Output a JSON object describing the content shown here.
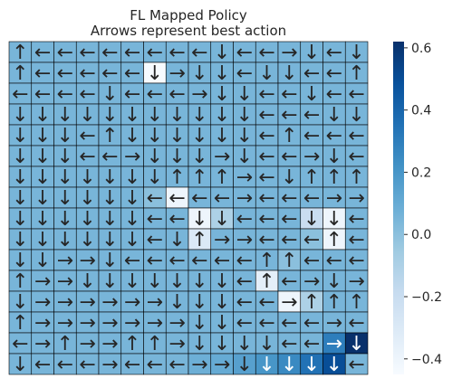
{
  "chart_data": {
    "type": "heatmap",
    "title": "FL Mapped Policy",
    "subtitle": "Arrows represent best action",
    "rows": 16,
    "cols": 16,
    "arrows": [
      [
        "↑",
        "←",
        "←",
        "←",
        "←",
        "←",
        "←",
        "←",
        "←",
        "↓",
        "←",
        "←",
        "→",
        "↓",
        "←",
        "↓"
      ],
      [
        "↑",
        "←",
        "←",
        "←",
        "←",
        "←",
        "↓",
        "→",
        "↓",
        "↓",
        "←",
        "↓",
        "↓",
        "←",
        "←",
        "↑"
      ],
      [
        "←",
        "←",
        "←",
        "←",
        "↓",
        "←",
        "←",
        "←",
        "→",
        "↓",
        "↓",
        "←",
        "←",
        "↓",
        "←",
        "←"
      ],
      [
        "↓",
        "↓",
        "↓",
        "↓",
        "↓",
        "↓",
        "↓",
        "↓",
        "↓",
        "↓",
        "↓",
        "←",
        "←",
        "←",
        "↓",
        "↓"
      ],
      [
        "↓",
        "↓",
        "↓",
        "←",
        "↑",
        "↓",
        "↓",
        "↓",
        "↓",
        "↓",
        "↓",
        "←",
        "↑",
        "←",
        "←",
        "←"
      ],
      [
        "↓",
        "↓",
        "↓",
        "←",
        "←",
        "→",
        "↓",
        "↓",
        "↓",
        "→",
        "↓",
        "←",
        "←",
        "→",
        "↓",
        "←"
      ],
      [
        "↓",
        "↓",
        "↓",
        "↓",
        "↓",
        "↓",
        "↓",
        "↑",
        "↑",
        "↑",
        "→",
        "←",
        "↓",
        "↑",
        "↑",
        "↑"
      ],
      [
        "↓",
        "↓",
        "↓",
        "↓",
        "↓",
        "↓",
        "←",
        "←",
        "←",
        "←",
        "→",
        "←",
        "←",
        "←",
        "→",
        "→"
      ],
      [
        "↓",
        "↓",
        "↓",
        "↓",
        "↓",
        "↓",
        "←",
        "←",
        "↓",
        "↓",
        "←",
        "←",
        "←",
        "↓",
        "↓",
        "←"
      ],
      [
        "↓",
        "↓",
        "↓",
        "↓",
        "↓",
        "↓",
        "←",
        "↓",
        "↑",
        "→",
        "→",
        "←",
        "←",
        "←",
        "↑",
        "←"
      ],
      [
        "↓",
        "↓",
        "→",
        "→",
        "↓",
        "←",
        "←",
        "←",
        "←",
        "←",
        "←",
        "↑",
        "↑",
        "←",
        "←",
        "←"
      ],
      [
        "↑",
        "→",
        "→",
        "↓",
        "↓",
        "↓",
        "↓",
        "↓",
        "↓",
        "↓",
        "←",
        "↑",
        "←",
        "→",
        "↓",
        "→"
      ],
      [
        "↓",
        "→",
        "→",
        "→",
        "→",
        "→",
        "→",
        "↓",
        "↓",
        "↓",
        "←",
        "←",
        "→",
        "↑",
        "↑",
        "↑"
      ],
      [
        "↑",
        "→",
        "→",
        "→",
        "→",
        "→",
        "→",
        "→",
        "↓",
        "↓",
        "←",
        "←",
        "←",
        "←",
        "→",
        "←"
      ],
      [
        "←",
        "→",
        "↑",
        "→",
        "→",
        "↑",
        "↑",
        "→",
        "↓",
        "↓",
        "↓",
        "↓",
        "←",
        "←",
        "→",
        "↓"
      ],
      [
        "↓",
        "←",
        "←",
        "←",
        "→",
        "←",
        "←",
        "←",
        "→",
        "→",
        "↓",
        "↓",
        "↓",
        "↓",
        "↓",
        "←"
      ]
    ],
    "values": [
      [
        0.05,
        0.05,
        0.05,
        0.05,
        0.05,
        0.05,
        0.05,
        0.05,
        0.05,
        0.05,
        0.05,
        0.05,
        0.05,
        0.05,
        0.05,
        0.05
      ],
      [
        0.05,
        0.05,
        0.05,
        0.05,
        0.05,
        0.05,
        -0.45,
        0.05,
        0.05,
        0.05,
        0.05,
        0.05,
        0.05,
        0.05,
        0.05,
        0.05
      ],
      [
        0.05,
        0.05,
        0.05,
        0.05,
        0.05,
        0.05,
        0.05,
        0.05,
        0.05,
        0.05,
        0.05,
        0.05,
        0.05,
        0.05,
        0.05,
        0.05
      ],
      [
        0.05,
        0.05,
        0.05,
        0.05,
        0.05,
        0.05,
        0.05,
        0.05,
        0.05,
        0.05,
        0.05,
        0.05,
        0.05,
        0.05,
        0.05,
        0.05
      ],
      [
        0.05,
        0.05,
        0.05,
        0.05,
        0.05,
        0.05,
        0.05,
        0.05,
        0.05,
        0.05,
        0.05,
        0.05,
        0.05,
        0.05,
        0.05,
        0.05
      ],
      [
        0.05,
        0.05,
        0.05,
        0.05,
        0.05,
        0.05,
        0.05,
        0.05,
        0.05,
        0.05,
        0.05,
        0.05,
        0.05,
        0.05,
        0.05,
        0.05
      ],
      [
        0.05,
        0.05,
        0.05,
        0.05,
        0.05,
        0.05,
        0.05,
        0.05,
        0.05,
        0.05,
        0.05,
        0.05,
        0.05,
        0.05,
        0.05,
        0.05
      ],
      [
        0.05,
        0.05,
        0.05,
        0.05,
        0.05,
        0.05,
        0.0,
        -0.4,
        0.05,
        0.05,
        0.05,
        0.05,
        0.05,
        0.05,
        0.05,
        0.05
      ],
      [
        0.05,
        0.05,
        0.05,
        0.05,
        0.05,
        0.05,
        0.05,
        0.05,
        -0.4,
        -0.1,
        0.05,
        0.05,
        0.05,
        -0.2,
        -0.4,
        0.05
      ],
      [
        0.05,
        0.05,
        0.05,
        0.05,
        0.05,
        0.05,
        0.05,
        0.05,
        -0.3,
        0.05,
        0.05,
        0.05,
        0.05,
        0.0,
        -0.4,
        0.05
      ],
      [
        0.05,
        0.05,
        0.05,
        0.05,
        0.05,
        0.05,
        0.05,
        0.05,
        0.05,
        0.05,
        0.05,
        0.05,
        0.0,
        0.05,
        0.05,
        0.05
      ],
      [
        0.05,
        0.05,
        0.05,
        0.05,
        0.05,
        0.05,
        0.05,
        0.05,
        0.05,
        0.05,
        0.05,
        -0.35,
        0.05,
        0.05,
        0.05,
        0.05
      ],
      [
        0.05,
        0.05,
        0.05,
        0.05,
        0.05,
        0.05,
        0.05,
        0.05,
        0.05,
        0.05,
        0.05,
        0.05,
        -0.4,
        -0.1,
        0.05,
        0.05
      ],
      [
        0.05,
        0.05,
        0.05,
        0.05,
        0.05,
        0.05,
        0.05,
        0.05,
        0.05,
        0.05,
        0.05,
        0.05,
        0.05,
        0.05,
        0.05,
        0.05
      ],
      [
        0.05,
        0.05,
        0.05,
        0.05,
        0.05,
        0.05,
        0.05,
        0.05,
        0.05,
        0.05,
        0.05,
        0.05,
        0.05,
        0.05,
        0.3,
        0.62
      ],
      [
        0.05,
        0.05,
        0.05,
        0.05,
        0.05,
        0.05,
        0.05,
        0.05,
        0.08,
        0.1,
        0.15,
        0.2,
        0.25,
        0.35,
        0.5,
        0.05
      ]
    ],
    "colorbar": {
      "vmin": -0.45,
      "vmax": 0.62,
      "ticks": [
        0.6,
        0.4,
        0.2,
        0.0,
        -0.2,
        -0.4
      ],
      "tick_labels": [
        "0.6",
        "0.4",
        "0.2",
        "0.0",
        "−0.2",
        "−0.4"
      ],
      "colormap": "Blues",
      "stops": [
        "#f7fbff",
        "#deebf7",
        "#c6dbef",
        "#9ecae1",
        "#6baed6",
        "#4292c6",
        "#2171b5",
        "#08519c",
        "#08306b"
      ]
    },
    "grid": true,
    "arrow_dark_color": "#262626",
    "arrow_light_color": "#ffffff"
  }
}
